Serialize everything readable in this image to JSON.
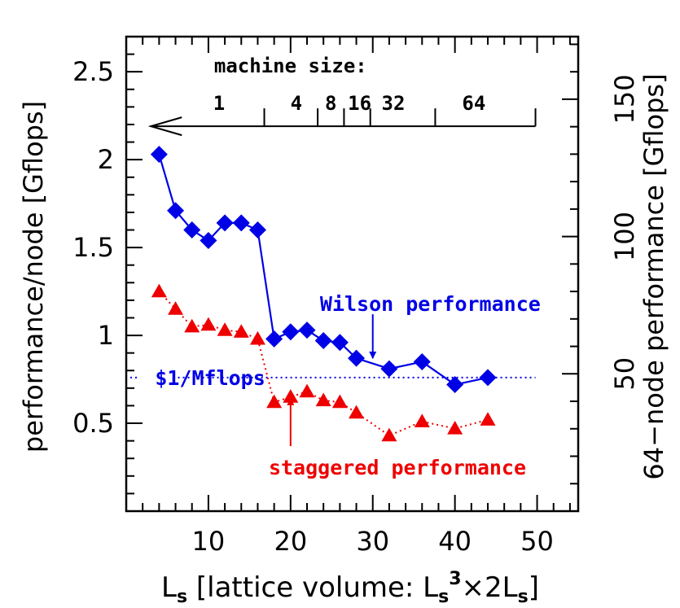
{
  "chart_data": {
    "type": "line",
    "xlabel_main": "L",
    "xlabel_sub": "s",
    "xlabel_rest1": " [lattice volume: L",
    "xlabel_sub2": "s",
    "xlabel_sup": "3",
    "xlabel_rest2": "×2L",
    "xlabel_sub3": "s",
    "xlabel_close": "]",
    "ylabel": "performance/node [Gflops]",
    "ylabel_right": "64−node performance [Gflops]",
    "xlim": [
      0,
      55
    ],
    "ylim": [
      0,
      2.7
    ],
    "y2lim": [
      0,
      172.8
    ],
    "x_ticks": [
      10,
      20,
      30,
      40,
      50
    ],
    "y_ticks": [
      0.5,
      1,
      1.5,
      2,
      2.5
    ],
    "y_tick_labels": [
      "0.5",
      "1",
      "1.5",
      "2",
      "2.5"
    ],
    "y2_ticks": [
      50,
      100,
      150
    ],
    "series": [
      {
        "name": "Wilson performance",
        "color": "#0000e6",
        "marker": "diamond",
        "x": [
          4,
          6,
          8,
          10,
          12,
          14,
          16,
          18,
          20,
          22,
          24,
          26,
          28,
          32,
          36,
          40,
          44
        ],
        "y": [
          2.03,
          1.71,
          1.6,
          1.54,
          1.64,
          1.64,
          1.6,
          0.98,
          1.02,
          1.03,
          0.97,
          0.96,
          0.87,
          0.81,
          0.85,
          0.72,
          0.76
        ]
      },
      {
        "name": "staggered performance",
        "color": "#ee0000",
        "marker": "triangle",
        "x": [
          4,
          6,
          8,
          10,
          12,
          14,
          16,
          18,
          20,
          22,
          24,
          26,
          28,
          32,
          36,
          40,
          44
        ],
        "y": [
          1.25,
          1.15,
          1.05,
          1.06,
          1.03,
          1.02,
          0.98,
          0.62,
          0.65,
          0.68,
          0.63,
          0.62,
          0.56,
          0.43,
          0.51,
          0.47,
          0.52
        ]
      }
    ],
    "reference_line": {
      "label": "$1/Mflops",
      "y": 0.76,
      "color": "#0000e6",
      "x_range": [
        0.5,
        49.8
      ]
    },
    "machine_size": {
      "title": "machine size:",
      "y": 2.19,
      "x_start": 3,
      "x_end": 49.8,
      "tick_x": [
        16.8,
        23.3,
        26.5,
        29.7,
        37.6
      ],
      "labels": [
        {
          "text": "1",
          "x": 11.3
        },
        {
          "text": "4",
          "x": 20.7
        },
        {
          "text": "8",
          "x": 24.9
        },
        {
          "text": "16",
          "x": 28.4
        },
        {
          "text": "32",
          "x": 32.5
        },
        {
          "text": "64",
          "x": 42.3
        }
      ]
    },
    "annotations": [
      {
        "text": "Wilson performance",
        "color": "#0000e6",
        "x": 37,
        "y": 1.18,
        "arrow_from": [
          30,
          1.12
        ],
        "arrow_to": [
          30,
          0.87
        ]
      },
      {
        "text": "staggered performance",
        "color": "#ee0000",
        "x": 33,
        "y": 0.25,
        "arrow_from": [
          20,
          0.37
        ],
        "arrow_to": [
          20,
          0.64
        ]
      }
    ]
  }
}
